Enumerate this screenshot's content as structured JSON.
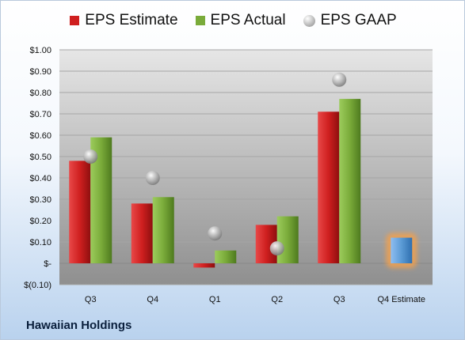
{
  "colors": {
    "estimate": "#cf1f1f",
    "actual": "#7aab3a",
    "gaap": "#a8a8a8",
    "future_estimate": "#5b9bd5",
    "future_glow": "#f0a050"
  },
  "company": "Hawaiian Holdings",
  "chart_data": {
    "type": "bar",
    "categories": [
      "Q3",
      "Q4",
      "Q1",
      "Q2",
      "Q3",
      "Q4 Estimate"
    ],
    "series": [
      {
        "name": "EPS Estimate",
        "values": [
          0.48,
          0.28,
          -0.02,
          0.18,
          0.71,
          0.12
        ]
      },
      {
        "name": "EPS Actual",
        "values": [
          0.59,
          0.31,
          0.06,
          0.22,
          0.77,
          null
        ]
      },
      {
        "name": "EPS GAAP",
        "values": [
          0.5,
          0.4,
          0.14,
          0.07,
          0.86,
          null
        ]
      }
    ],
    "ylim": [
      -0.1,
      1.0
    ],
    "yticks": [
      "$1.00",
      "$0.90",
      "$0.80",
      "$0.70",
      "$0.60",
      "$0.50",
      "$0.40",
      "$0.30",
      "$0.20",
      "$0.10",
      "$-",
      "$(0.10)"
    ],
    "grid": true,
    "legend_position": "top"
  }
}
